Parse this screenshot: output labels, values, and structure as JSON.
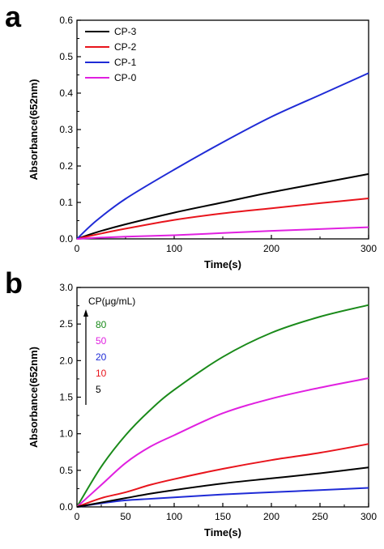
{
  "chart_data": [
    {
      "panel": "a",
      "type": "line",
      "xlabel": "Time(s)",
      "ylabel": "Absorbance(652nm)",
      "xlim": [
        0,
        300
      ],
      "ylim": [
        0,
        0.6
      ],
      "xticks": [
        0,
        100,
        200,
        300
      ],
      "yticks": [
        0.0,
        0.1,
        0.2,
        0.3,
        0.4,
        0.5,
        0.6
      ],
      "xtick_labels": [
        "0",
        "100",
        "200",
        "300"
      ],
      "ytick_labels": [
        "0.0",
        "0.1",
        "0.2",
        "0.3",
        "0.4",
        "0.5",
        "0.6"
      ],
      "grid": false,
      "legend_position": "top-left",
      "series": [
        {
          "name": "CP-3",
          "color": "#000000",
          "x": [
            0,
            20,
            50,
            100,
            150,
            200,
            250,
            300
          ],
          "y": [
            0,
            0.018,
            0.04,
            0.072,
            0.1,
            0.128,
            0.153,
            0.178
          ]
        },
        {
          "name": "CP-2",
          "color": "#e8141c",
          "x": [
            0,
            20,
            50,
            100,
            150,
            200,
            250,
            300
          ],
          "y": [
            0,
            0.012,
            0.028,
            0.052,
            0.07,
            0.084,
            0.098,
            0.111
          ]
        },
        {
          "name": "CP-1",
          "color": "#1f2bd6",
          "x": [
            0,
            20,
            50,
            100,
            150,
            200,
            250,
            300
          ],
          "y": [
            0,
            0.05,
            0.11,
            0.19,
            0.265,
            0.335,
            0.395,
            0.455
          ]
        },
        {
          "name": "CP-0",
          "color": "#e020e0",
          "x": [
            0,
            20,
            50,
            100,
            150,
            200,
            250,
            300
          ],
          "y": [
            0,
            0.003,
            0.006,
            0.01,
            0.016,
            0.022,
            0.027,
            0.032
          ]
        }
      ]
    },
    {
      "panel": "b",
      "type": "line",
      "xlabel": "Time(s)",
      "ylabel": "Absorbance(652nm)",
      "xlim": [
        0,
        300
      ],
      "ylim": [
        0,
        3.0
      ],
      "xticks": [
        0,
        50,
        100,
        150,
        200,
        250,
        300
      ],
      "yticks": [
        0.0,
        0.5,
        1.0,
        1.5,
        2.0,
        2.5,
        3.0
      ],
      "xtick_labels": [
        "0",
        "50",
        "100",
        "150",
        "200",
        "250",
        "300"
      ],
      "ytick_labels": [
        "0.0",
        "0.5",
        "1.0",
        "1.5",
        "2.0",
        "2.5",
        "3.0"
      ],
      "grid": false,
      "legend_position": "top-left",
      "legend_title": "CP(μg/mL)",
      "series": [
        {
          "name": "80",
          "color": "#1a8a1a",
          "x": [
            0,
            25,
            50,
            75,
            100,
            150,
            200,
            250,
            300
          ],
          "y": [
            0,
            0.55,
            0.98,
            1.32,
            1.6,
            2.05,
            2.38,
            2.6,
            2.76
          ]
        },
        {
          "name": "50",
          "color": "#e020e0",
          "x": [
            0,
            25,
            50,
            75,
            100,
            150,
            200,
            250,
            300
          ],
          "y": [
            0,
            0.3,
            0.6,
            0.82,
            0.98,
            1.28,
            1.48,
            1.63,
            1.76
          ]
        },
        {
          "name": "20",
          "color": "#1f2bd6",
          "x": [
            0,
            25,
            50,
            75,
            100,
            150,
            200,
            250,
            300
          ],
          "y": [
            0,
            0.05,
            0.09,
            0.11,
            0.13,
            0.17,
            0.2,
            0.23,
            0.26
          ]
        },
        {
          "name": "10",
          "color": "#e8141c",
          "x": [
            0,
            25,
            50,
            75,
            100,
            150,
            200,
            250,
            300
          ],
          "y": [
            0,
            0.12,
            0.2,
            0.3,
            0.38,
            0.52,
            0.64,
            0.74,
            0.86
          ]
        },
        {
          "name": "5",
          "color": "#000000",
          "x": [
            0,
            25,
            50,
            75,
            100,
            150,
            200,
            250,
            300
          ],
          "y": [
            0,
            0.06,
            0.12,
            0.18,
            0.23,
            0.32,
            0.39,
            0.46,
            0.54
          ]
        }
      ]
    }
  ]
}
